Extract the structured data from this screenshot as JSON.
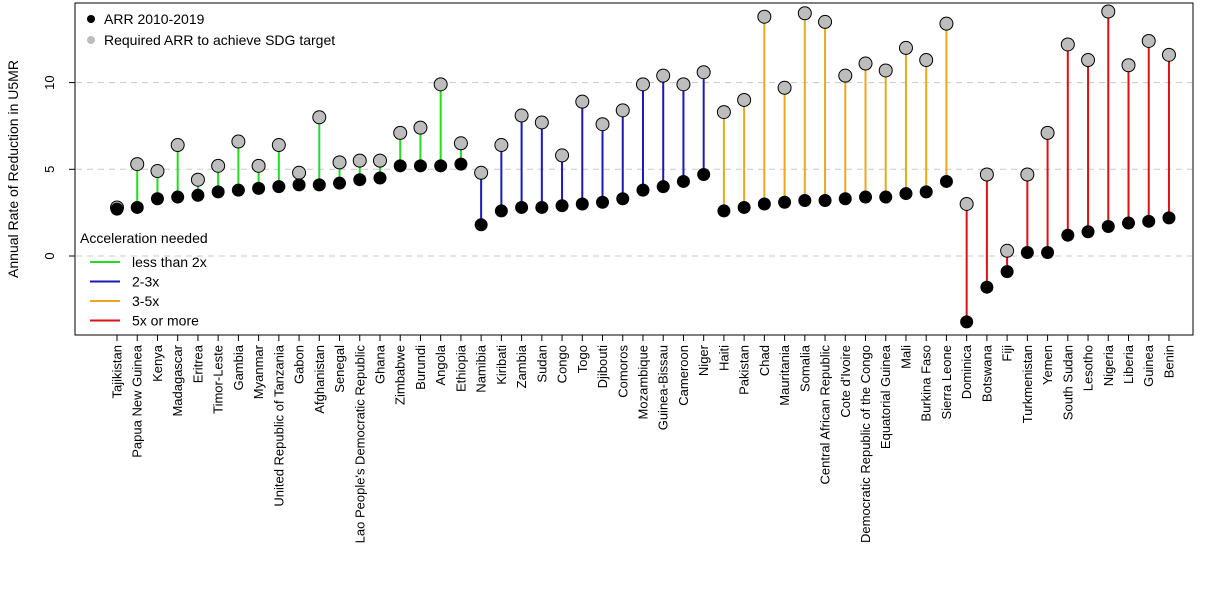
{
  "chart_data": {
    "type": "dot-range",
    "title": "",
    "xlabel": "",
    "ylabel": "Annual Rate of Reduction in U5MR",
    "ylim": [
      -4.2,
      14.2
    ],
    "yticks": [
      0,
      5,
      10
    ],
    "y_gridlines": [
      0,
      5,
      10
    ],
    "grid": "dashed horizontal at 0, 5, 10",
    "legend_position": "top-left",
    "point_legend": [
      {
        "label": "ARR 2010-2019",
        "color": "#000000"
      },
      {
        "label": "Required ARR to achieve SDG target",
        "color": "#bdbdbd"
      }
    ],
    "group_legend_title": "Acceleration needed",
    "groups": [
      {
        "key": "lt2",
        "label": "less than 2x",
        "color": "#22dd22"
      },
      {
        "key": "2to3",
        "label": "2-3x",
        "color": "#1a1ab4"
      },
      {
        "key": "3to5",
        "label": "3-5x",
        "color": "#e8a820"
      },
      {
        "key": "gt5",
        "label": "5x or more",
        "color": "#dd1111"
      }
    ],
    "countries": [
      {
        "name": "Tajikistan",
        "arr": 2.7,
        "required": 2.8,
        "group": "lt2"
      },
      {
        "name": "Papua New Guinea",
        "arr": 2.8,
        "required": 5.3,
        "group": "lt2"
      },
      {
        "name": "Kenya",
        "arr": 3.3,
        "required": 4.9,
        "group": "lt2"
      },
      {
        "name": "Madagascar",
        "arr": 3.4,
        "required": 6.4,
        "group": "lt2"
      },
      {
        "name": "Eritrea",
        "arr": 3.5,
        "required": 4.4,
        "group": "lt2"
      },
      {
        "name": "Timor-Leste",
        "arr": 3.7,
        "required": 5.2,
        "group": "lt2"
      },
      {
        "name": "Gambia",
        "arr": 3.8,
        "required": 6.6,
        "group": "lt2"
      },
      {
        "name": "Myanmar",
        "arr": 3.9,
        "required": 5.2,
        "group": "lt2"
      },
      {
        "name": "United Republic of Tanzania",
        "arr": 4.0,
        "required": 6.4,
        "group": "lt2"
      },
      {
        "name": "Gabon",
        "arr": 4.1,
        "required": 4.8,
        "group": "lt2"
      },
      {
        "name": "Afghanistan",
        "arr": 4.1,
        "required": 8.0,
        "group": "lt2"
      },
      {
        "name": "Senegal",
        "arr": 4.2,
        "required": 5.4,
        "group": "lt2"
      },
      {
        "name": "Lao People's Democratic Republic",
        "arr": 4.4,
        "required": 5.5,
        "group": "lt2"
      },
      {
        "name": "Ghana",
        "arr": 4.5,
        "required": 5.5,
        "group": "lt2"
      },
      {
        "name": "Zimbabwe",
        "arr": 5.2,
        "required": 7.1,
        "group": "lt2"
      },
      {
        "name": "Burundi",
        "arr": 5.2,
        "required": 7.4,
        "group": "lt2"
      },
      {
        "name": "Angola",
        "arr": 5.2,
        "required": 9.9,
        "group": "lt2"
      },
      {
        "name": "Ethiopia",
        "arr": 5.3,
        "required": 6.5,
        "group": "lt2"
      },
      {
        "name": "Namibia",
        "arr": 1.8,
        "required": 4.8,
        "group": "2to3"
      },
      {
        "name": "Kiribati",
        "arr": 2.6,
        "required": 6.4,
        "group": "2to3"
      },
      {
        "name": "Zambia",
        "arr": 2.8,
        "required": 8.1,
        "group": "2to3"
      },
      {
        "name": "Sudan",
        "arr": 2.8,
        "required": 7.7,
        "group": "2to3"
      },
      {
        "name": "Congo",
        "arr": 2.9,
        "required": 5.8,
        "group": "2to3"
      },
      {
        "name": "Togo",
        "arr": 3.0,
        "required": 8.9,
        "group": "2to3"
      },
      {
        "name": "Djibouti",
        "arr": 3.1,
        "required": 7.6,
        "group": "2to3"
      },
      {
        "name": "Comoros",
        "arr": 3.3,
        "required": 8.4,
        "group": "2to3"
      },
      {
        "name": "Mozambique",
        "arr": 3.8,
        "required": 9.9,
        "group": "2to3"
      },
      {
        "name": "Guinea-Bissau",
        "arr": 4.0,
        "required": 10.4,
        "group": "2to3"
      },
      {
        "name": "Cameroon",
        "arr": 4.3,
        "required": 9.9,
        "group": "2to3"
      },
      {
        "name": "Niger",
        "arr": 4.7,
        "required": 10.6,
        "group": "2to3"
      },
      {
        "name": "Haiti",
        "arr": 2.6,
        "required": 8.3,
        "group": "3to5"
      },
      {
        "name": "Pakistan",
        "arr": 2.8,
        "required": 9.0,
        "group": "3to5"
      },
      {
        "name": "Chad",
        "arr": 3.0,
        "required": 13.8,
        "group": "3to5"
      },
      {
        "name": "Mauritania",
        "arr": 3.1,
        "required": 9.7,
        "group": "3to5"
      },
      {
        "name": "Somalia",
        "arr": 3.2,
        "required": 14.0,
        "group": "3to5"
      },
      {
        "name": "Central African Republic",
        "arr": 3.2,
        "required": 13.5,
        "group": "3to5"
      },
      {
        "name": "Cote d'Ivoire",
        "arr": 3.3,
        "required": 10.4,
        "group": "3to5"
      },
      {
        "name": "Democratic Republic of the Congo",
        "arr": 3.4,
        "required": 11.1,
        "group": "3to5"
      },
      {
        "name": "Equatorial Guinea",
        "arr": 3.4,
        "required": 10.7,
        "group": "3to5"
      },
      {
        "name": "Mali",
        "arr": 3.6,
        "required": 12.0,
        "group": "3to5"
      },
      {
        "name": "Burkina Faso",
        "arr": 3.7,
        "required": 11.3,
        "group": "3to5"
      },
      {
        "name": "Sierra Leone",
        "arr": 4.3,
        "required": 13.4,
        "group": "3to5"
      },
      {
        "name": "Dominica",
        "arr": -3.8,
        "required": 3.0,
        "group": "gt5"
      },
      {
        "name": "Botswana",
        "arr": -1.8,
        "required": 4.7,
        "group": "gt5"
      },
      {
        "name": "Fiji",
        "arr": -0.9,
        "required": 0.3,
        "group": "gt5"
      },
      {
        "name": "Turkmenistan",
        "arr": 0.2,
        "required": 4.7,
        "group": "gt5"
      },
      {
        "name": "Yemen",
        "arr": 0.2,
        "required": 7.1,
        "group": "gt5"
      },
      {
        "name": "South Sudan",
        "arr": 1.2,
        "required": 12.2,
        "group": "gt5"
      },
      {
        "name": "Lesotho",
        "arr": 1.4,
        "required": 11.3,
        "group": "gt5"
      },
      {
        "name": "Nigeria",
        "arr": 1.7,
        "required": 14.1,
        "group": "gt5"
      },
      {
        "name": "Liberia",
        "arr": 1.9,
        "required": 11.0,
        "group": "gt5"
      },
      {
        "name": "Guinea",
        "arr": 2.0,
        "required": 12.4,
        "group": "gt5"
      },
      {
        "name": "Benin",
        "arr": 2.2,
        "required": 11.6,
        "group": "gt5"
      }
    ]
  }
}
